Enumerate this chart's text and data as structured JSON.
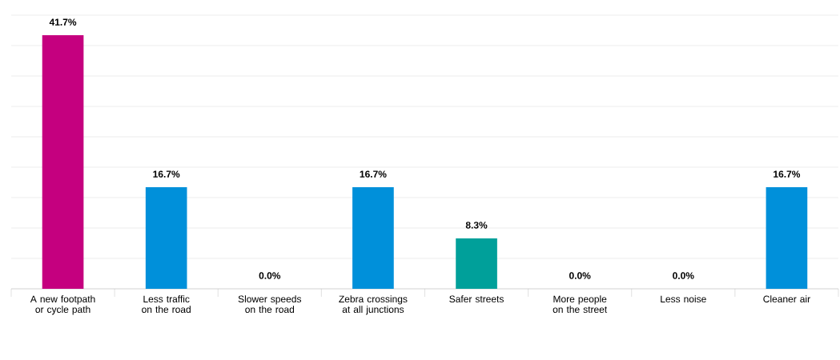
{
  "chart_data": {
    "type": "bar",
    "categories": [
      "A new footpath or cycle path",
      "Less traffic on the road",
      "Slower speeds on the road",
      "Zebra crossings at all junctions",
      "Safer streets",
      "More people on the street",
      "Less noise",
      "Cleaner air"
    ],
    "values": [
      41.7,
      16.7,
      0.0,
      16.7,
      8.3,
      0.0,
      0.0,
      16.7
    ],
    "value_labels": [
      "41.7%",
      "16.7%",
      "0.0%",
      "16.7%",
      "8.3%",
      "0.0%",
      "0.0%",
      "16.7%"
    ],
    "colors": [
      "#c5007f",
      "#0090da",
      "#0090da",
      "#0090da",
      "#00a09a",
      "#0090da",
      "#0090da",
      "#0090da"
    ],
    "ylim": [
      0,
      45
    ],
    "yticks": [
      {
        "value": 0,
        "label": null
      },
      {
        "value": 5,
        "label": null
      },
      {
        "value": 10,
        "label": null
      },
      {
        "value": 15,
        "label": null
      },
      {
        "value": 20,
        "label": null
      },
      {
        "value": 25,
        "label": null
      },
      {
        "value": 30,
        "label": null
      },
      {
        "value": 35,
        "label": null
      },
      {
        "value": 40,
        "label": null
      },
      {
        "value": 45,
        "label": null
      }
    ],
    "grid": "y"
  }
}
